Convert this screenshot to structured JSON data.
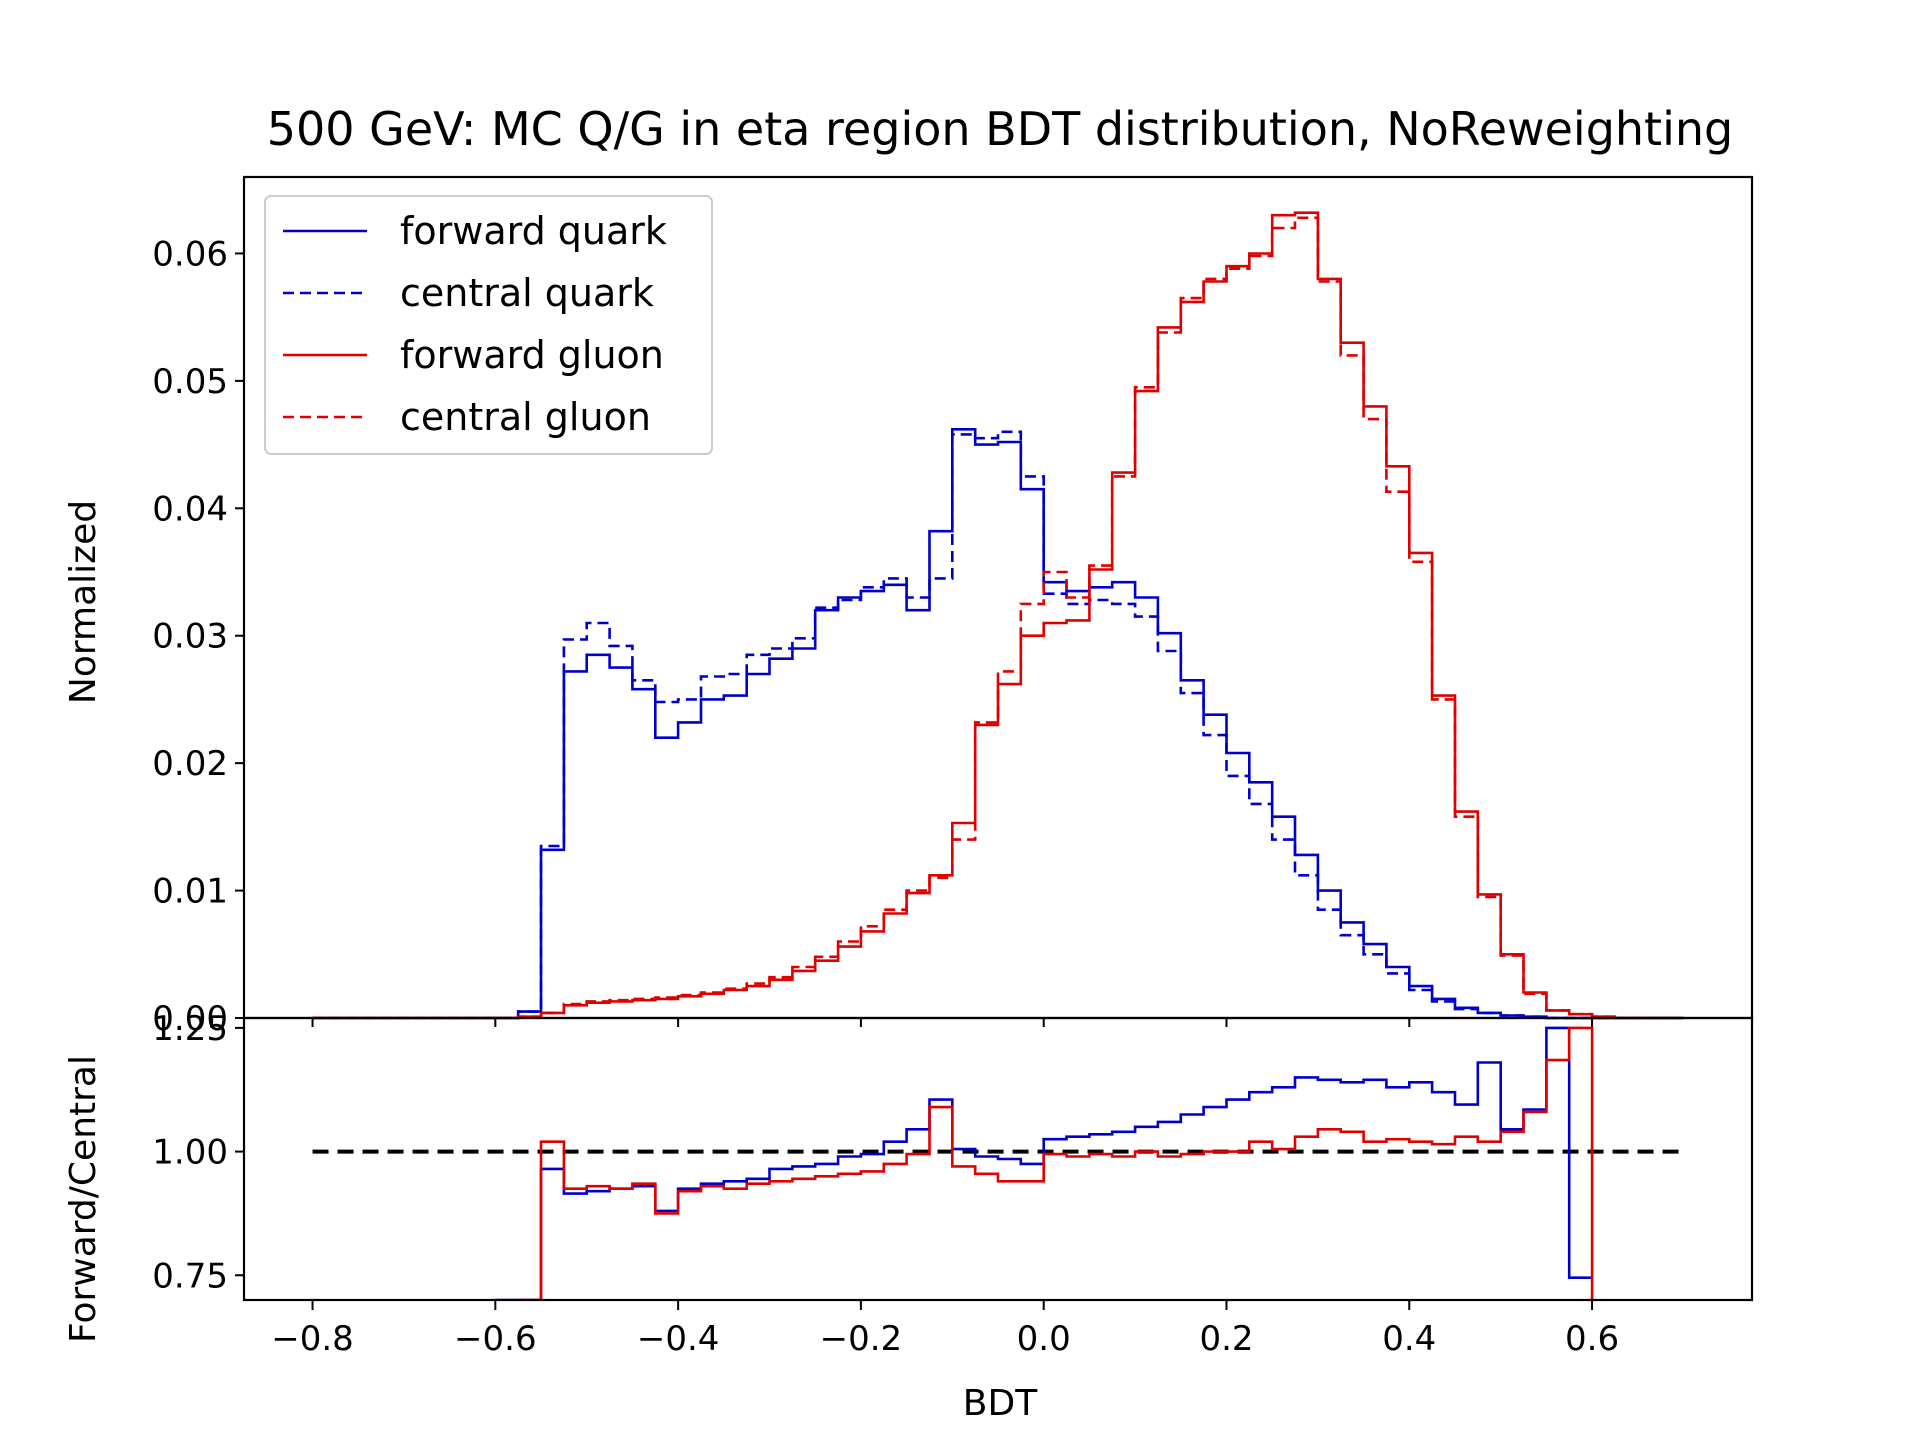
{
  "chart_data": [
    {
      "type": "line",
      "drawstyle": "steps",
      "title": "500 GeV: MC Q/G in eta region BDT distribution, NoReweighting",
      "xlabel": "",
      "ylabel": "Normalized",
      "xlim": [
        -0.875,
        0.775
      ],
      "ylim": [
        0,
        0.066
      ],
      "xticks": [
        -0.8,
        -0.6,
        -0.4,
        -0.2,
        0.0,
        0.2,
        0.4,
        0.6
      ],
      "yticks": [
        0.0,
        0.01,
        0.02,
        0.03,
        0.04,
        0.05,
        0.06
      ],
      "ytick_labels": [
        "0.00",
        "0.01",
        "0.02",
        "0.03",
        "0.04",
        "0.05",
        "0.06"
      ],
      "legend": {
        "position": "top-left"
      },
      "grid": false,
      "bin_edges": [
        -0.8,
        -0.775,
        -0.75,
        -0.725,
        -0.7,
        -0.675,
        -0.65,
        -0.625,
        -0.6,
        -0.575,
        -0.55,
        -0.525,
        -0.5,
        -0.475,
        -0.45,
        -0.425,
        -0.4,
        -0.375,
        -0.35,
        -0.325,
        -0.3,
        -0.275,
        -0.25,
        -0.225,
        -0.2,
        -0.175,
        -0.15,
        -0.125,
        -0.1,
        -0.075,
        -0.05,
        -0.025,
        0.0,
        0.025,
        0.05,
        0.075,
        0.1,
        0.125,
        0.15,
        0.175,
        0.2,
        0.225,
        0.25,
        0.275,
        0.3,
        0.325,
        0.35,
        0.375,
        0.4,
        0.425,
        0.45,
        0.475,
        0.5,
        0.525,
        0.55,
        0.575,
        0.6,
        0.625,
        0.65,
        0.675,
        0.7
      ],
      "series": [
        {
          "name": "forward quark",
          "color": "#0000cc",
          "linestyle": "solid",
          "values": [
            0,
            0,
            0,
            0,
            0,
            0,
            0,
            0,
            0,
            0.0005,
            0.0132,
            0.0272,
            0.0285,
            0.0275,
            0.0258,
            0.022,
            0.0232,
            0.025,
            0.0253,
            0.027,
            0.0282,
            0.029,
            0.032,
            0.033,
            0.0335,
            0.034,
            0.032,
            0.0382,
            0.0462,
            0.045,
            0.0452,
            0.0415,
            0.0342,
            0.0335,
            0.0338,
            0.0342,
            0.033,
            0.0302,
            0.0265,
            0.0238,
            0.0208,
            0.0185,
            0.0158,
            0.0128,
            0.01,
            0.0075,
            0.0058,
            0.004,
            0.0025,
            0.0015,
            0.0008,
            0.0004,
            0.0002,
            0.0001,
            0,
            0,
            0,
            0,
            0,
            0
          ]
        },
        {
          "name": "central quark",
          "color": "#0000cc",
          "linestyle": "dashed",
          "values": [
            0,
            0,
            0,
            0,
            0,
            0,
            0,
            0,
            0,
            0.0005,
            0.0135,
            0.0297,
            0.031,
            0.0292,
            0.0265,
            0.0248,
            0.025,
            0.0268,
            0.027,
            0.0285,
            0.029,
            0.0298,
            0.0322,
            0.0328,
            0.0338,
            0.0345,
            0.033,
            0.0345,
            0.0458,
            0.0455,
            0.046,
            0.0425,
            0.0333,
            0.0325,
            0.0328,
            0.0325,
            0.0315,
            0.0288,
            0.0255,
            0.0222,
            0.019,
            0.0168,
            0.014,
            0.0112,
            0.0085,
            0.0065,
            0.005,
            0.0035,
            0.0022,
            0.0013,
            0.0007,
            0.0004,
            0.0002,
            0.0001,
            0,
            0,
            0,
            0,
            0,
            0
          ]
        },
        {
          "name": "forward gluon",
          "color": "#e00000",
          "linestyle": "solid",
          "values": [
            0,
            0,
            0,
            0,
            0,
            0,
            0,
            0,
            0,
            0.0001,
            0.0004,
            0.001,
            0.0012,
            0.0013,
            0.0014,
            0.0015,
            0.0017,
            0.0019,
            0.0022,
            0.0025,
            0.003,
            0.0037,
            0.0045,
            0.0056,
            0.0068,
            0.0082,
            0.0098,
            0.0112,
            0.0153,
            0.023,
            0.0262,
            0.03,
            0.031,
            0.0312,
            0.0352,
            0.0428,
            0.0492,
            0.0542,
            0.0562,
            0.0578,
            0.059,
            0.06,
            0.063,
            0.0632,
            0.058,
            0.053,
            0.048,
            0.0433,
            0.0365,
            0.0253,
            0.0162,
            0.0097,
            0.005,
            0.002,
            0.0006,
            0.0003,
            0.0001,
            0,
            0,
            0
          ]
        },
        {
          "name": "central gluon",
          "color": "#e00000",
          "linestyle": "dashed",
          "values": [
            0,
            0,
            0,
            0,
            0,
            0,
            0,
            0,
            0,
            0.0001,
            0.0004,
            0.0011,
            0.0013,
            0.0014,
            0.0015,
            0.0016,
            0.0018,
            0.002,
            0.0023,
            0.0027,
            0.0032,
            0.004,
            0.0048,
            0.006,
            0.0072,
            0.0085,
            0.01,
            0.011,
            0.014,
            0.0232,
            0.0272,
            0.0325,
            0.035,
            0.033,
            0.0355,
            0.0425,
            0.0495,
            0.0538,
            0.0565,
            0.058,
            0.0588,
            0.0598,
            0.062,
            0.0628,
            0.0578,
            0.052,
            0.047,
            0.0413,
            0.0358,
            0.025,
            0.0158,
            0.0095,
            0.0049,
            0.0019,
            0.0006,
            0.0003,
            0.0001,
            0,
            0,
            0
          ]
        }
      ]
    },
    {
      "type": "line",
      "drawstyle": "steps",
      "title": "",
      "xlabel": "BDT",
      "ylabel": "Forward/Central",
      "xlim": [
        -0.875,
        0.775
      ],
      "ylim": [
        0.7,
        1.27
      ],
      "xticks": [
        -0.8,
        -0.6,
        -0.4,
        -0.2,
        0.0,
        0.2,
        0.4,
        0.6
      ],
      "xtick_labels": [
        "−0.8",
        "−0.6",
        "−0.4",
        "−0.2",
        "0.0",
        "0.2",
        "0.4",
        "0.6"
      ],
      "yticks": [
        0.75,
        1.0,
        1.25
      ],
      "ytick_labels": [
        "0.75",
        "1.00",
        "1.25"
      ],
      "grid": false,
      "reference_line": {
        "y": 1.0,
        "x_range": [
          -0.8,
          0.7
        ],
        "color": "#000000",
        "linestyle": "dashed"
      },
      "series": [
        {
          "name": "forward quark",
          "color": "#0000cc",
          "linestyle": "solid",
          "x": [
            -0.6,
            -0.55,
            -0.525,
            -0.5,
            -0.475,
            -0.45,
            -0.425,
            -0.4,
            -0.375,
            -0.35,
            -0.325,
            -0.3,
            -0.275,
            -0.25,
            -0.225,
            -0.2,
            -0.175,
            -0.15,
            -0.125,
            -0.1,
            -0.075,
            -0.05,
            -0.025,
            0.0,
            0.025,
            0.05,
            0.075,
            0.1,
            0.125,
            0.15,
            0.175,
            0.2,
            0.225,
            0.25,
            0.275,
            0.3,
            0.325,
            0.35,
            0.375,
            0.4,
            0.425,
            0.45,
            0.475,
            0.5,
            0.525,
            0.55,
            0.575,
            0.6
          ],
          "values": [
            0.7,
            0.965,
            0.915,
            0.92,
            0.925,
            0.93,
            0.88,
            0.925,
            0.935,
            0.94,
            0.945,
            0.965,
            0.97,
            0.975,
            0.99,
            0.995,
            1.02,
            1.045,
            1.105,
            1.005,
            0.99,
            0.985,
            0.975,
            1.025,
            1.03,
            1.035,
            1.04,
            1.05,
            1.06,
            1.075,
            1.09,
            1.105,
            1.12,
            1.13,
            1.15,
            1.145,
            1.14,
            1.145,
            1.13,
            1.14,
            1.12,
            1.095,
            1.18,
            1.045,
            1.085,
            1.25,
            0.745,
            0.745
          ]
        },
        {
          "name": "forward gluon",
          "color": "#e00000",
          "linestyle": "solid",
          "x": [
            -0.575,
            -0.55,
            -0.525,
            -0.5,
            -0.475,
            -0.45,
            -0.425,
            -0.4,
            -0.375,
            -0.35,
            -0.325,
            -0.3,
            -0.275,
            -0.25,
            -0.225,
            -0.2,
            -0.175,
            -0.15,
            -0.125,
            -0.1,
            -0.075,
            -0.05,
            -0.025,
            0.0,
            0.025,
            0.05,
            0.075,
            0.1,
            0.125,
            0.15,
            0.175,
            0.2,
            0.225,
            0.25,
            0.275,
            0.3,
            0.325,
            0.35,
            0.375,
            0.4,
            0.425,
            0.45,
            0.475,
            0.5,
            0.525,
            0.55,
            0.575,
            0.6
          ],
          "values": [
            0.7,
            1.02,
            0.925,
            0.93,
            0.925,
            0.935,
            0.875,
            0.92,
            0.93,
            0.925,
            0.935,
            0.94,
            0.945,
            0.95,
            0.955,
            0.96,
            0.975,
            0.995,
            1.09,
            0.97,
            0.955,
            0.94,
            0.94,
            0.995,
            0.99,
            0.995,
            0.99,
            1.0,
            0.99,
            0.995,
            1.0,
            1.0,
            1.02,
            1.005,
            1.03,
            1.045,
            1.04,
            1.02,
            1.025,
            1.02,
            1.015,
            1.03,
            1.02,
            1.04,
            1.08,
            1.185,
            1.25,
            0.7
          ]
        }
      ]
    }
  ]
}
